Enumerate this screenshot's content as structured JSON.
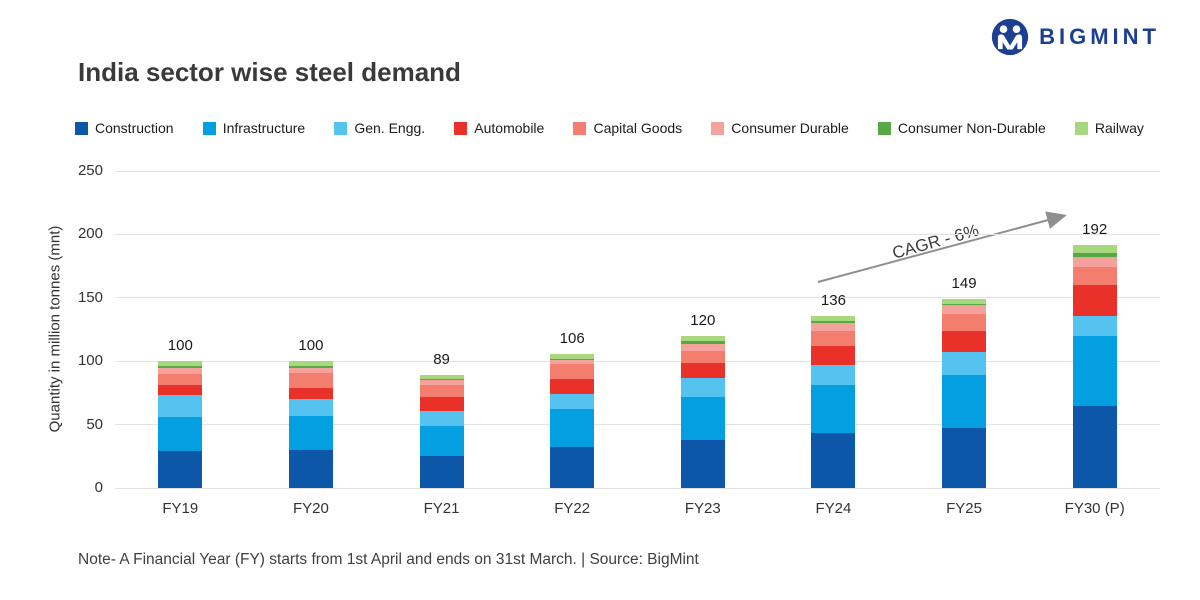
{
  "brand": {
    "name": "BIGMINT",
    "color": "#1c3f94"
  },
  "title": "India sector wise steel demand",
  "note": "Note- A Financial Year (FY) starts from 1st April and ends on 31st March. | Source: BigMint",
  "annotation": {
    "cagr_label": "CAGR - 6%"
  },
  "chart_data": {
    "type": "bar",
    "stacked": true,
    "title": "India sector wise steel demand",
    "ylabel": "Quantity in million tonnes (mnt)",
    "xlabel": "",
    "ylim": [
      0,
      250
    ],
    "yticks": [
      0,
      50,
      100,
      150,
      200,
      250
    ],
    "grid": true,
    "legend_position": "top",
    "categories": [
      "FY19",
      "FY20",
      "FY21",
      "FY22",
      "FY23",
      "FY24",
      "FY25",
      "FY30 (P)"
    ],
    "series": [
      {
        "name": "Construction",
        "color": "#0d57a8",
        "values": [
          29,
          30,
          25,
          32,
          38,
          43,
          47,
          65
        ]
      },
      {
        "name": "Infrastructure",
        "color": "#049fe0",
        "values": [
          27,
          27,
          24,
          30,
          34,
          38,
          42,
          55
        ]
      },
      {
        "name": "Gen. Engg.",
        "color": "#55c3ef",
        "values": [
          17,
          13,
          12,
          12,
          15,
          16,
          18,
          16
        ]
      },
      {
        "name": "Automobile",
        "color": "#e93129",
        "values": [
          8,
          9,
          11,
          12,
          12,
          15,
          17,
          24
        ]
      },
      {
        "name": "Capital Goods",
        "color": "#f37d6f",
        "values": [
          9,
          12,
          9,
          12,
          9,
          12,
          13,
          14
        ]
      },
      {
        "name": "Consumer Durable",
        "color": "#f4a29b",
        "values": [
          5,
          4,
          4,
          3,
          6,
          6,
          7,
          8
        ]
      },
      {
        "name": "Consumer Non-Durable",
        "color": "#57a847",
        "values": [
          1,
          1,
          1,
          1,
          2,
          2,
          1,
          3
        ]
      },
      {
        "name": "Railway",
        "color": "#a7d87d",
        "values": [
          4,
          4,
          3,
          4,
          4,
          4,
          4,
          7
        ]
      }
    ],
    "totals": [
      100,
      100,
      89,
      106,
      120,
      136,
      149,
      192
    ]
  }
}
